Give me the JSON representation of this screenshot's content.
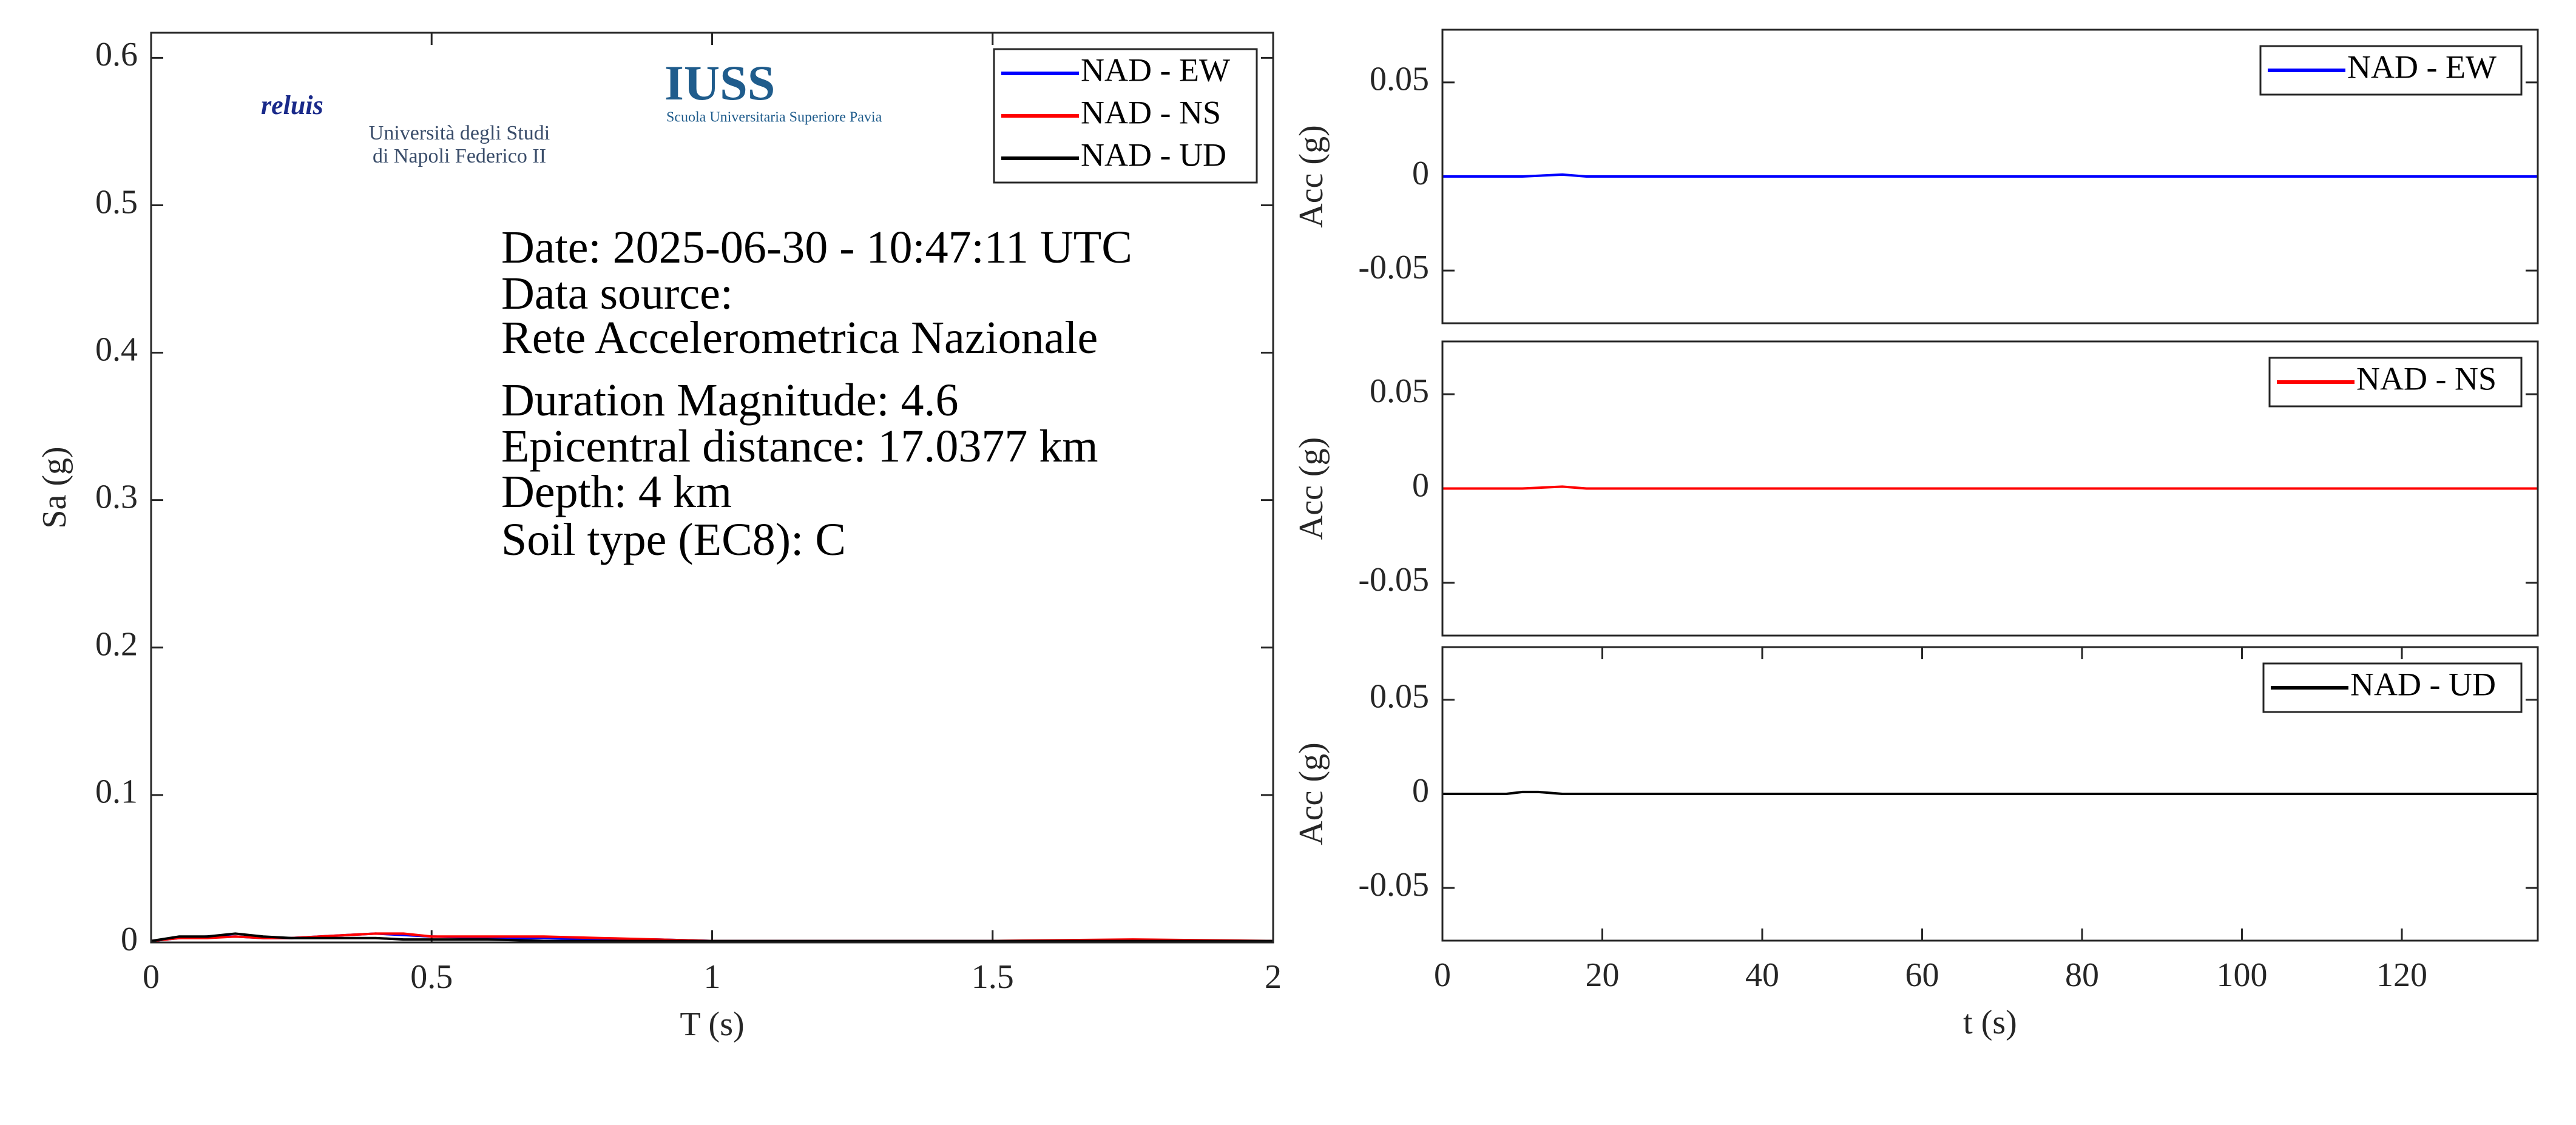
{
  "chart_data": [
    {
      "type": "line",
      "xlabel": "T (s)",
      "ylabel": "Sa (g)",
      "x": [
        0,
        0.05,
        0.1,
        0.15,
        0.2,
        0.25,
        0.3,
        0.35,
        0.4,
        0.45,
        0.5,
        0.6,
        0.7,
        0.8,
        0.9,
        1,
        1.25,
        1.5,
        1.75,
        2
      ],
      "series": [
        {
          "name": "NAD - EW",
          "color": "#0000ff",
          "values": [
            0.001,
            0.003,
            0.004,
            0.004,
            0.003,
            0.003,
            0.004,
            0.005,
            0.006,
            0.005,
            0.004,
            0.003,
            0.003,
            0.002,
            0.002,
            0.001,
            0.001,
            0.001,
            0.001,
            0.001
          ]
        },
        {
          "name": "NAD - NS",
          "color": "#ff0000",
          "values": [
            0.001,
            0.003,
            0.003,
            0.004,
            0.003,
            0.003,
            0.004,
            0.005,
            0.006,
            0.006,
            0.004,
            0.004,
            0.004,
            0.003,
            0.002,
            0.001,
            0.001,
            0.001,
            0.002,
            0.001
          ]
        },
        {
          "name": "NAD - UD",
          "color": "#000000",
          "values": [
            0.001,
            0.004,
            0.004,
            0.006,
            0.004,
            0.003,
            0.003,
            0.003,
            0.003,
            0.002,
            0.002,
            0.002,
            0.001,
            0.001,
            0.001,
            0.001,
            0.001,
            0.001,
            0.001,
            0.001
          ]
        }
      ],
      "xlim": [
        0,
        2
      ],
      "xticks": [
        0,
        0.5,
        1,
        1.5,
        2
      ],
      "ylim": [
        0,
        0.617
      ],
      "yticks": [
        0,
        0.1,
        0.2,
        0.3,
        0.4,
        0.5,
        0.6
      ],
      "legend": "upper right",
      "annotations": [
        "Date: 2025-06-30 - 10:47:11 UTC",
        "Data source:",
        "Rete Accelerometrica Nazionale",
        "Duration Magnitude: 4.6",
        "Epicentral distance: 17.0377 km",
        "Depth: 4 km",
        "Soil type (EC8): C"
      ],
      "logos": [
        "reluis",
        "Università degli Studi",
        "di Napoli Federico II",
        "IUSS",
        "Scuola Universitaria Superiore Pavia"
      ]
    },
    {
      "type": "line",
      "ylabel": "Acc (g)",
      "x": [
        0,
        10,
        15,
        18,
        20,
        40,
        60,
        80,
        100,
        120,
        137
      ],
      "series": [
        {
          "name": "NAD - EW",
          "color": "#0000ff",
          "values": [
            0,
            0,
            0.001,
            0,
            0,
            0,
            0,
            0,
            0,
            0,
            0
          ]
        }
      ],
      "xlim": [
        0,
        137
      ],
      "ylim": [
        -0.078,
        0.078
      ],
      "yticks": [
        -0.05,
        0,
        0.05
      ],
      "legend": "upper right"
    },
    {
      "type": "line",
      "ylabel": "Acc (g)",
      "x": [
        0,
        10,
        15,
        18,
        20,
        40,
        60,
        80,
        100,
        120,
        137
      ],
      "series": [
        {
          "name": "NAD - NS",
          "color": "#ff0000",
          "values": [
            0,
            0,
            0.001,
            0,
            0,
            0,
            0,
            0,
            0,
            0,
            0
          ]
        }
      ],
      "xlim": [
        0,
        137
      ],
      "ylim": [
        -0.078,
        0.078
      ],
      "yticks": [
        -0.05,
        0,
        0.05
      ],
      "legend": "upper right"
    },
    {
      "type": "line",
      "xlabel": "t (s)",
      "ylabel": "Acc (g)",
      "x": [
        0,
        8,
        10,
        12,
        15,
        20,
        40,
        60,
        80,
        100,
        120,
        137
      ],
      "series": [
        {
          "name": "NAD - UD",
          "color": "#000000",
          "values": [
            0,
            0,
            0.001,
            0.001,
            0,
            0,
            0,
            0,
            0,
            0,
            0,
            0
          ]
        }
      ],
      "xlim": [
        0,
        137
      ],
      "xticks": [
        0,
        20,
        40,
        60,
        80,
        100,
        120
      ],
      "ylim": [
        -0.078,
        0.078
      ],
      "yticks": [
        -0.05,
        0,
        0.05
      ],
      "legend": "upper right"
    }
  ]
}
